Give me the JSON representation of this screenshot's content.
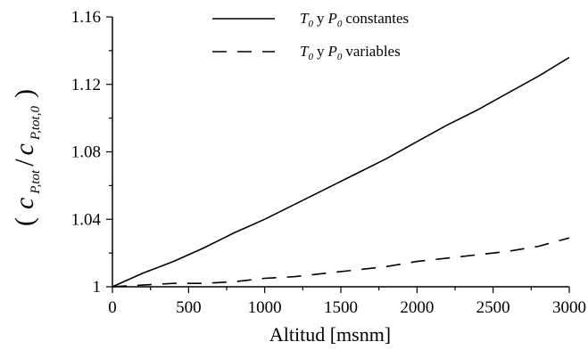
{
  "chart_data": {
    "type": "line",
    "title": "",
    "xlabel": "Altitud [msnm]",
    "ylabel": {
      "open_paren": "(",
      "num_sym": "c",
      "num_sub": "P,tot",
      "slash": "/",
      "den_sym": "c",
      "den_sub": "P,tot,0",
      "close_paren": ")"
    },
    "xlim": [
      0,
      3000
    ],
    "ylim": [
      1,
      1.16
    ],
    "xticks": [
      "0",
      "500",
      "1000",
      "1500",
      "2000",
      "2500",
      "3000"
    ],
    "yticks": [
      "1",
      "1.04",
      "1.08",
      "1.12",
      "1.16"
    ],
    "grid": false,
    "legend_position": "top-center",
    "series": [
      {
        "style": "solid",
        "legend": {
          "t_sym": "T",
          "t_sub": "0",
          "y": "y",
          "p_sym": "P",
          "p_sub": "0",
          "rest": "constantes"
        },
        "x": [
          0,
          200,
          400,
          600,
          800,
          1000,
          1200,
          1400,
          1600,
          1800,
          2000,
          2200,
          2400,
          2600,
          2800,
          3000
        ],
        "y": [
          1.0,
          1.008,
          1.015,
          1.023,
          1.032,
          1.04,
          1.049,
          1.058,
          1.067,
          1.076,
          1.086,
          1.096,
          1.105,
          1.115,
          1.125,
          1.136
        ]
      },
      {
        "style": "dashed",
        "legend": {
          "t_sym": "T",
          "t_sub": "0",
          "y": "y",
          "p_sym": "P",
          "p_sub": "0",
          "rest": "variables"
        },
        "x": [
          0,
          200,
          400,
          600,
          800,
          1000,
          1200,
          1400,
          1600,
          1800,
          2000,
          2200,
          2400,
          2600,
          2800,
          3000
        ],
        "y": [
          1.0,
          1.001,
          1.002,
          1.002,
          1.003,
          1.005,
          1.006,
          1.008,
          1.01,
          1.012,
          1.015,
          1.017,
          1.019,
          1.021,
          1.024,
          1.029
        ]
      }
    ]
  }
}
